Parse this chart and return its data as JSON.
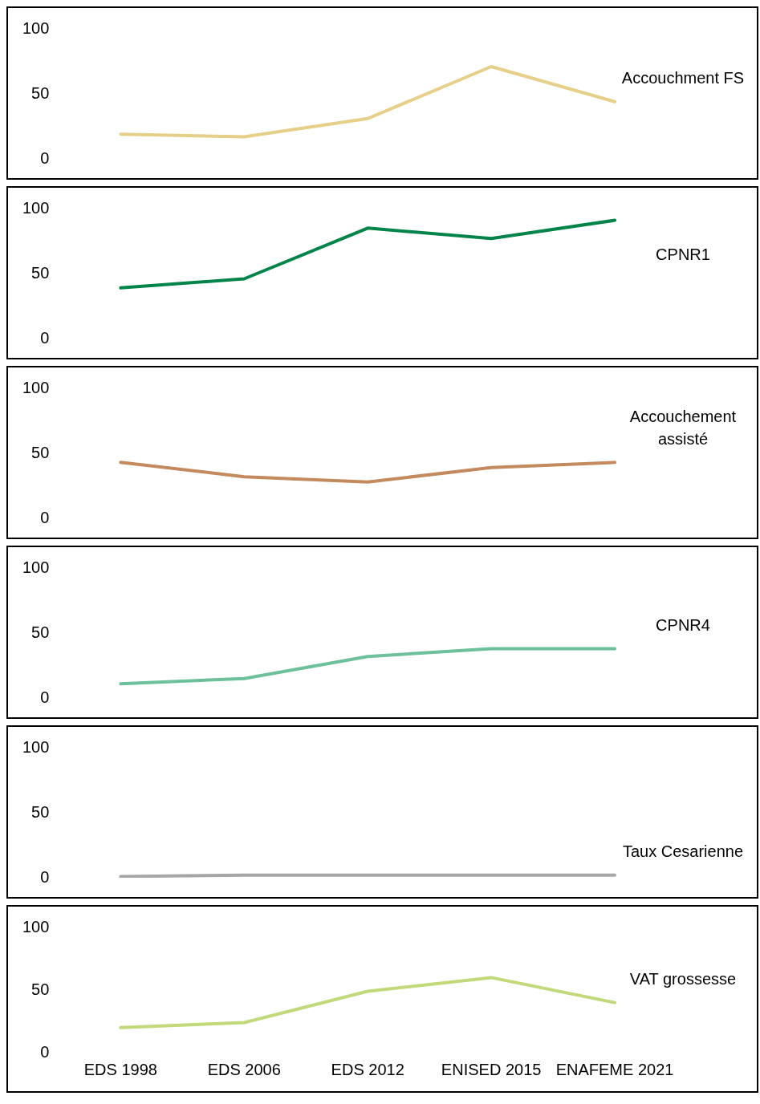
{
  "chart_data": [
    {
      "type": "line",
      "series": [
        {
          "name": "Accouchment FS",
          "color": "#e6cf88",
          "values": [
            19,
            17,
            31,
            71,
            44
          ]
        }
      ],
      "ylim": [
        0,
        100
      ],
      "yticks": [
        0,
        50,
        100
      ],
      "grid": false,
      "legend": false,
      "marker": "none",
      "line_style": "solid",
      "tick_labels": "y"
    },
    {
      "type": "line",
      "series": [
        {
          "name": "CPNR1",
          "color": "#00844a",
          "values": [
            39,
            46,
            85,
            77,
            91
          ]
        }
      ],
      "ylim": [
        0,
        100
      ],
      "yticks": [
        0,
        50,
        100
      ],
      "grid": false,
      "legend": false,
      "marker": "none",
      "line_style": "solid",
      "tick_labels": "y"
    },
    {
      "type": "line",
      "series": [
        {
          "name": "Accouchement assisté",
          "color": "#c48a5e",
          "values": [
            43,
            32,
            28,
            39,
            43
          ]
        }
      ],
      "ylim": [
        0,
        100
      ],
      "yticks": [
        0,
        50,
        100
      ],
      "grid": false,
      "legend": false,
      "marker": "none",
      "line_style": "solid",
      "tick_labels": "y"
    },
    {
      "type": "line",
      "series": [
        {
          "name": "CPNR4",
          "color": "#6cc09a",
          "values": [
            11,
            15,
            32,
            38,
            38
          ]
        }
      ],
      "ylim": [
        0,
        100
      ],
      "yticks": [
        0,
        50,
        100
      ],
      "grid": false,
      "legend": false,
      "marker": "none",
      "line_style": "solid",
      "tick_labels": "y"
    },
    {
      "type": "line",
      "series": [
        {
          "name": "Taux Cesarienne",
          "color": "#a6a6a6",
          "values": [
            1,
            2,
            2,
            2,
            2
          ]
        }
      ],
      "ylim": [
        0,
        100
      ],
      "yticks": [
        0,
        50,
        100
      ],
      "grid": false,
      "legend": false,
      "marker": "none",
      "line_style": "solid",
      "tick_labels": "y"
    },
    {
      "type": "line",
      "categories": [
        "EDS 1998",
        "EDS 2006",
        "EDS 2012",
        "ENISED 2015",
        "ENAFEME 2021"
      ],
      "series": [
        {
          "name": "VAT grossesse",
          "color": "#c2d97a",
          "values": [
            20,
            24,
            49,
            60,
            40
          ]
        }
      ],
      "ylim": [
        0,
        100
      ],
      "yticks": [
        0,
        50,
        100
      ],
      "grid": false,
      "legend": false,
      "marker": "none",
      "line_style": "solid"
    }
  ]
}
